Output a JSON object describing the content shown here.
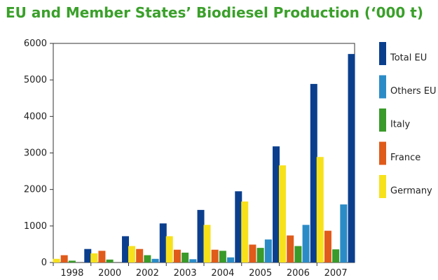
{
  "chart_data": {
    "type": "bar",
    "title": "EU and Member States’ Biodiesel Production (‘000 t)",
    "xlabel": "",
    "ylabel": "",
    "categories": [
      "1998",
      "2000",
      "2002",
      "2003",
      "2004",
      "2005",
      "2006",
      "2007"
    ],
    "ylim": [
      0,
      6000
    ],
    "yticks": [
      0,
      1000,
      2000,
      3000,
      4000,
      5000,
      6000
    ],
    "grid": false,
    "legend_position": "right",
    "series": [
      {
        "name": "Germany",
        "color": "#f7e11b",
        "values": [
          100,
          250,
          450,
          720,
          1030,
          1670,
          2660,
          2890
        ]
      },
      {
        "name": "France",
        "color": "#e05a1a",
        "values": [
          200,
          320,
          370,
          350,
          350,
          490,
          740,
          870
        ]
      },
      {
        "name": "Italy",
        "color": "#3a9a2a",
        "values": [
          50,
          80,
          200,
          270,
          320,
          400,
          450,
          360
        ]
      },
      {
        "name": "Others EU",
        "color": "#2b8bc6",
        "values": [
          0,
          0,
          100,
          90,
          140,
          630,
          1030,
          1590
        ]
      },
      {
        "name": "Total EU",
        "color": "#0b3f8e",
        "values": [
          370,
          720,
          1070,
          1440,
          1950,
          3180,
          4890,
          5710
        ]
      }
    ],
    "legend_order": [
      "Total EU",
      "Others EU",
      "Italy",
      "France",
      "Germany"
    ]
  }
}
